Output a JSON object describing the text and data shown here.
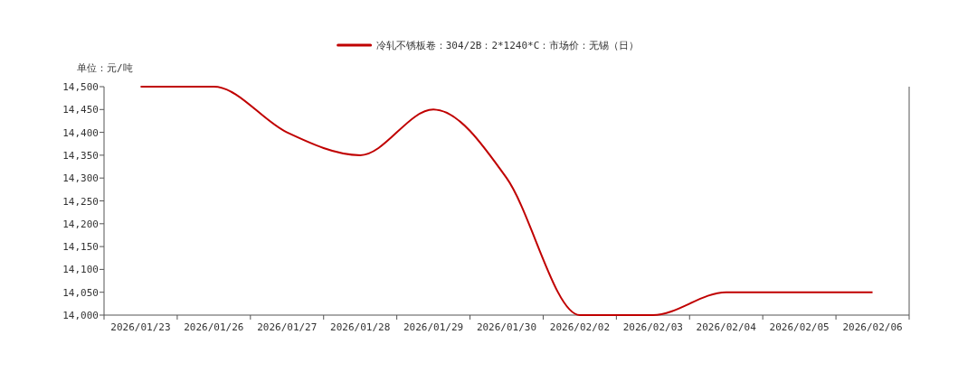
{
  "chart_data": {
    "type": "line",
    "ylabel": "单位：元/吨",
    "categories": [
      "2026/01/23",
      "2026/01/26",
      "2026/01/27",
      "2026/01/28",
      "2026/01/29",
      "2026/01/30",
      "2026/02/02",
      "2026/02/03",
      "2026/02/04",
      "2026/02/05",
      "2026/02/06"
    ],
    "series": [
      {
        "name": "冷轧不锈板卷：304/2B：2*1240*C：市场价：无锡（日）",
        "color": "#c00000",
        "values": [
          14500,
          14500,
          14400,
          14350,
          14450,
          14300,
          14000,
          14000,
          14050,
          14050,
          14050
        ]
      }
    ],
    "ylim": [
      14000,
      14500
    ],
    "yticks": [
      {
        "value": 14000,
        "label": "14,000"
      },
      {
        "value": 14050,
        "label": "14,050"
      },
      {
        "value": 14100,
        "label": "14,100"
      },
      {
        "value": 14150,
        "label": "14,150"
      },
      {
        "value": 14200,
        "label": "14,200"
      },
      {
        "value": 14250,
        "label": "14,250"
      },
      {
        "value": 14300,
        "label": "14,300"
      },
      {
        "value": 14350,
        "label": "14,350"
      },
      {
        "value": 14400,
        "label": "14,400"
      },
      {
        "value": 14450,
        "label": "14,450"
      },
      {
        "value": 14500,
        "label": "14,500"
      }
    ],
    "legend": "top",
    "grid": false,
    "marker": "none",
    "line_style": "solid"
  }
}
